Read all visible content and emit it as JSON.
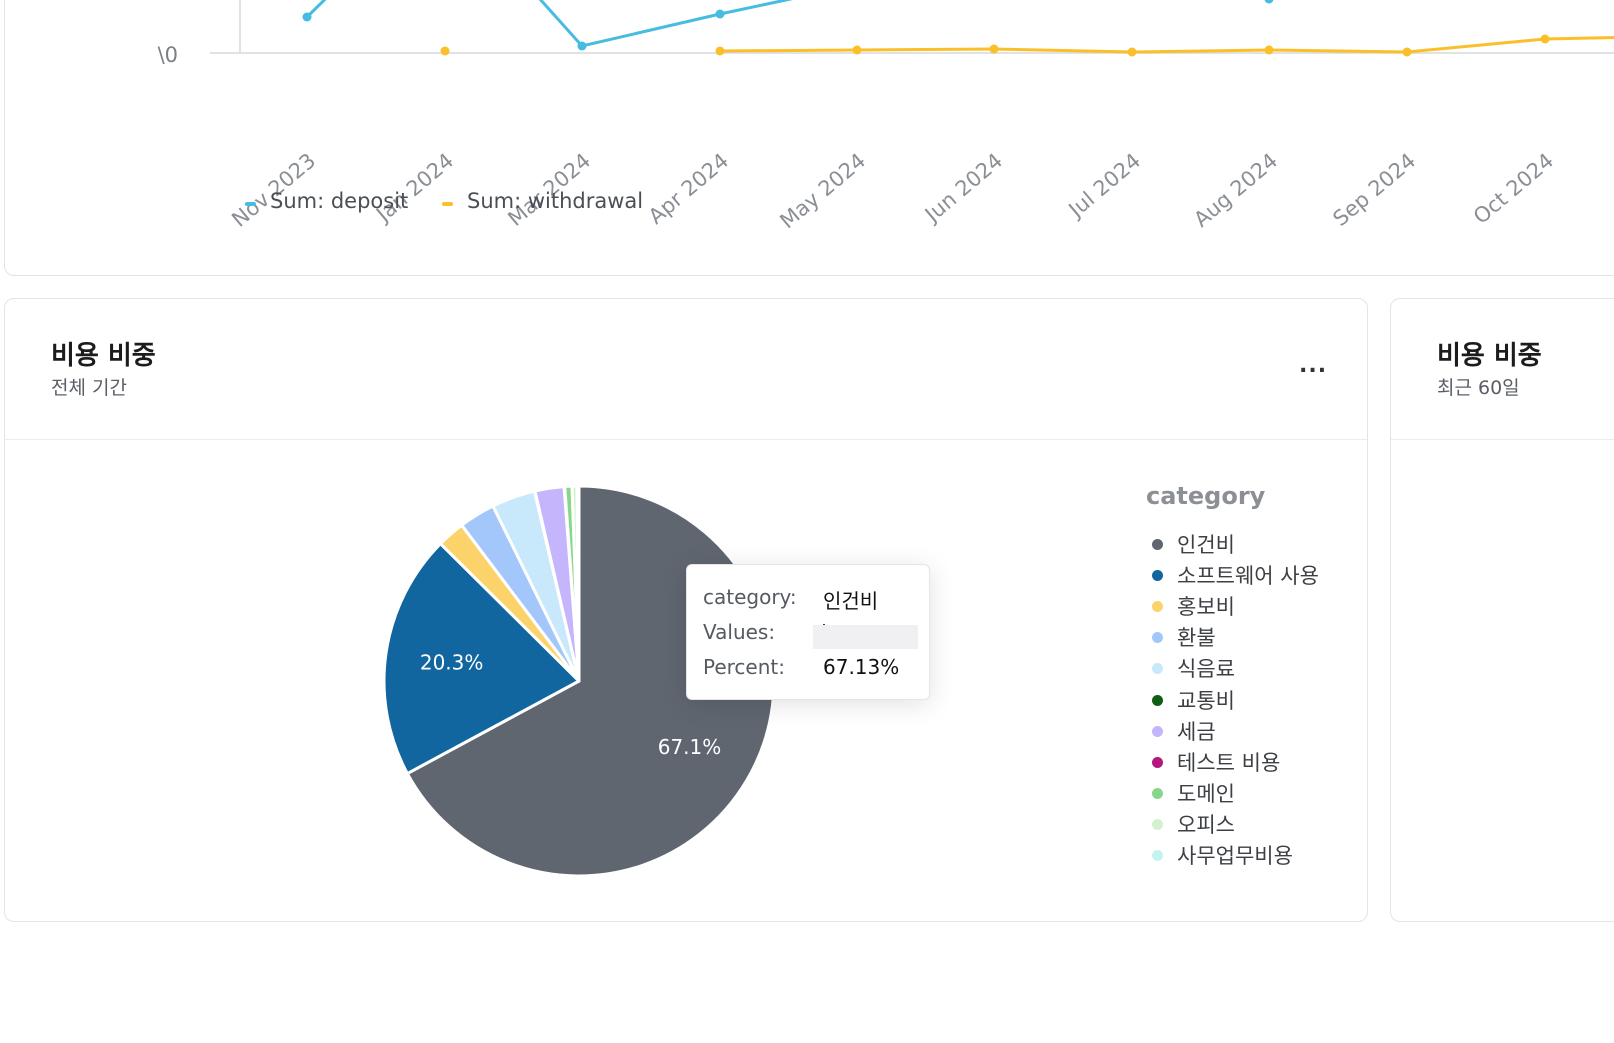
{
  "line_chart": {
    "legend": [
      {
        "label": "Sum: deposit",
        "color": "#45bce0"
      },
      {
        "label": "Sum: withdrawal",
        "color": "#fbbf2a"
      }
    ]
  },
  "pie_card": {
    "title": "비용 비중",
    "subtitle": "전체 기간",
    "more_label": "..."
  },
  "pie_card_2": {
    "title": "비용 비중",
    "subtitle": "최근 60일"
  },
  "tooltip": {
    "category_label": "category:",
    "category_value": "인건비",
    "values_label": "Values:",
    "values_value": "\\",
    "percent_label": "Percent:",
    "percent_value": "67.13%"
  },
  "legend_title": "category",
  "chart_data": [
    {
      "type": "line",
      "categories": [
        "Nov 2023",
        "Jan 2024",
        "Mar 2024",
        "Apr 2024",
        "May 2024",
        "Jun 2024",
        "Jul 2024",
        "Aug 2024",
        "Sep 2024",
        "Oct 2024"
      ],
      "ytick_labels": [
        "\\0"
      ],
      "series": [
        {
          "name": "Sum: deposit",
          "color": "#45bce0"
        },
        {
          "name": "Sum: withdrawal",
          "color": "#fbbf2a"
        }
      ],
      "grid": false,
      "legend_position": "bottom-left"
    },
    {
      "type": "pie",
      "legend_title": "category",
      "slices": [
        {
          "label": "인건비",
          "percent": 67.13,
          "data_label": "67.1%",
          "color": "#5f6670"
        },
        {
          "label": "소프트웨어 사용",
          "percent": 20.3,
          "data_label": "20.3%",
          "color": "#1166a0"
        },
        {
          "label": "홍보비",
          "percent": 2.3,
          "color": "#fcd36a"
        },
        {
          "label": "환불",
          "percent": 3.0,
          "color": "#a4c7fb"
        },
        {
          "label": "식음료",
          "percent": 3.6,
          "color": "#c8e8fc"
        },
        {
          "label": "교통비",
          "percent": 0.05,
          "color": "#0f5e12"
        },
        {
          "label": "세금",
          "percent": 2.4,
          "color": "#c4b5fd"
        },
        {
          "label": "테스트 비용",
          "percent": 0.05,
          "color": "#b5177c"
        },
        {
          "label": "도메인",
          "percent": 0.6,
          "color": "#88d68a"
        },
        {
          "label": "오피스",
          "percent": 0.4,
          "color": "#d2f1d0"
        },
        {
          "label": "사무업무비용",
          "percent": 0.17,
          "color": "#c5f3f1"
        }
      ],
      "legend_position": "right"
    }
  ]
}
